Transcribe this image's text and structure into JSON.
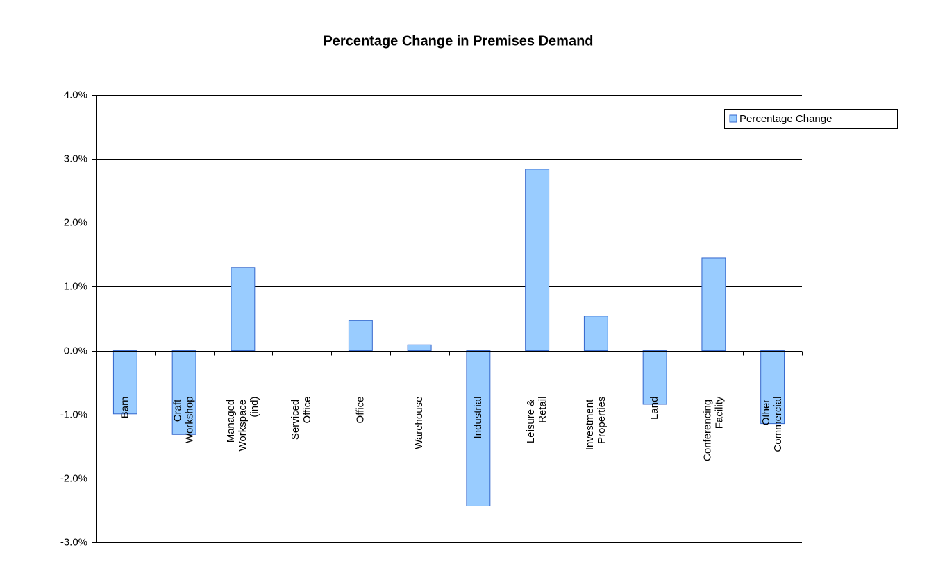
{
  "chart_data": {
    "type": "bar",
    "title": "Percentage Change in Premises Demand",
    "categories": [
      "Barn",
      "Craft Workshop",
      "Managed Workspace (ind)",
      "Serviced Office",
      "Office",
      "Warehouse",
      "Industrial",
      "Leisure & Retail",
      "Investment Properties",
      "Land",
      "Conferencing Facility",
      "Other Commercial"
    ],
    "series": [
      {
        "name": "Percentage Change",
        "color": "#99ccff",
        "values": [
          -0.99,
          -1.31,
          1.3,
          0,
          0.47,
          0.09,
          -2.43,
          2.84,
          0.54,
          -0.84,
          1.45,
          -1.14
        ]
      }
    ],
    "ylim": [
      -3,
      4
    ],
    "yticks": [
      {
        "value": -3,
        "label": "-3.0%"
      },
      {
        "value": -2,
        "label": "-2.0%"
      },
      {
        "value": -1,
        "label": "-1.0%"
      },
      {
        "value": 0,
        "label": "0.0%"
      },
      {
        "value": 1,
        "label": "1.0%"
      },
      {
        "value": 2,
        "label": "2.0%"
      },
      {
        "value": 3,
        "label": "3.0%"
      },
      {
        "value": 4,
        "label": "4.0%"
      }
    ],
    "grid": true,
    "legend": "upper right"
  }
}
